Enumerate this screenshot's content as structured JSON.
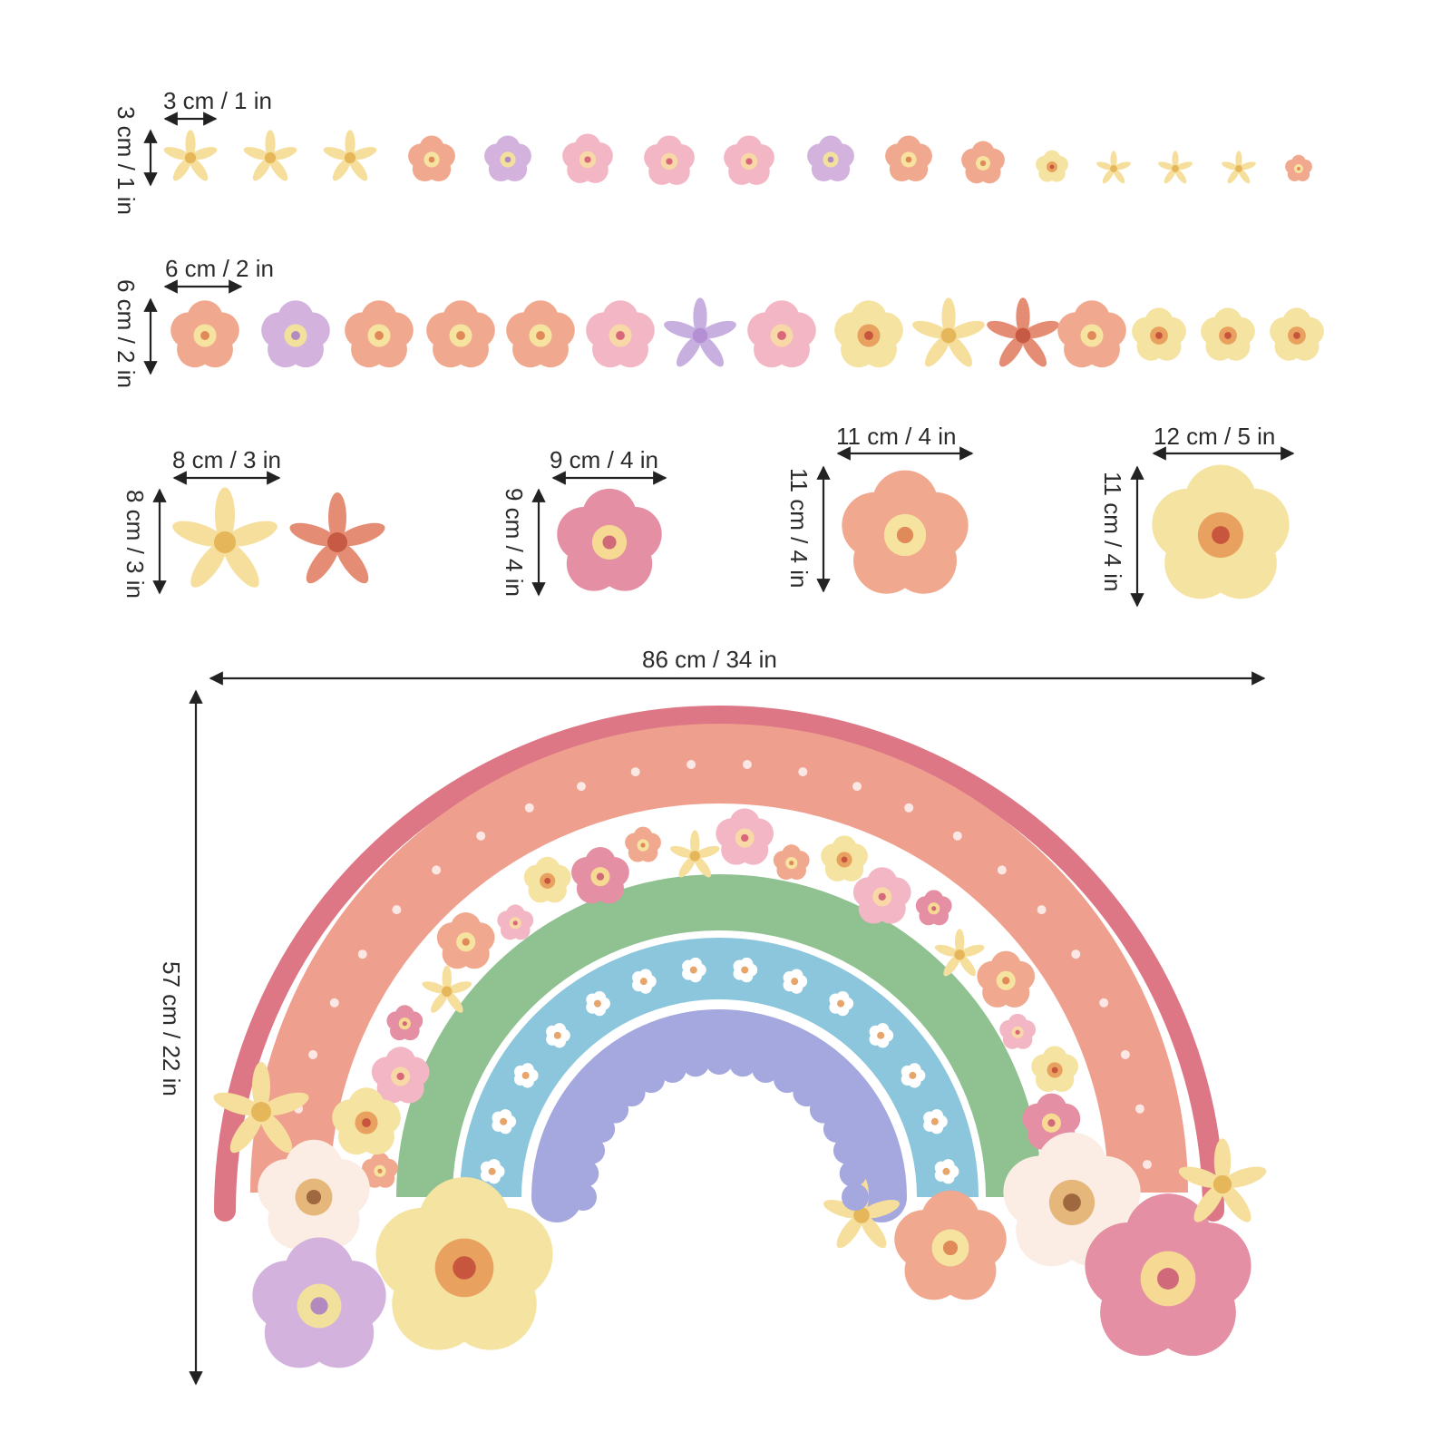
{
  "dimensions": {
    "row1_width": "3 cm / 1 in",
    "row1_height": "3 cm / 1 in",
    "row2_width": "6 cm / 2 in",
    "row2_height": "6 cm / 2 in",
    "set8_width": "8 cm / 3 in",
    "set8_height": "8 cm / 3 in",
    "set9_width": "9 cm / 4 in",
    "set9_height": "9 cm / 4 in",
    "set11_width": "11 cm / 4 in",
    "set11_height": "11 cm / 4 in",
    "set12_width": "12 cm / 5 in",
    "set12_height": "11 cm / 4 in",
    "rainbow_width": "86 cm / 34 in",
    "rainbow_height": "57 cm / 22 in"
  },
  "colors": {
    "outer_band": "#de7785",
    "coral_band": "#ee9f8e",
    "green_band": "#8fc191",
    "blue_band": "#8cc6dc",
    "purple_band": "#a5a8de",
    "peach_flower": "#f0a98e",
    "pink_flower": "#f3b6c4",
    "lilac_flower": "#d3b3de",
    "yellow_flower": "#f5e3a2",
    "dim_line": "#222222"
  },
  "row1_flowers": [
    "yellow-star",
    "yellow-star",
    "yellow-star",
    "peach",
    "lilac",
    "pink",
    "pink",
    "pink",
    "lilac",
    "peach",
    "peach",
    "yellow",
    "yellow-star",
    "yellow-star",
    "yellow-star",
    "peach"
  ],
  "row2_flowers": [
    "peach",
    "lilac",
    "peach",
    "peach",
    "peach",
    "pink",
    "lilac-star",
    "pink",
    "yellow",
    "yellow-star",
    "coral-star",
    "peach",
    "yellow",
    "yellow",
    "yellow"
  ]
}
